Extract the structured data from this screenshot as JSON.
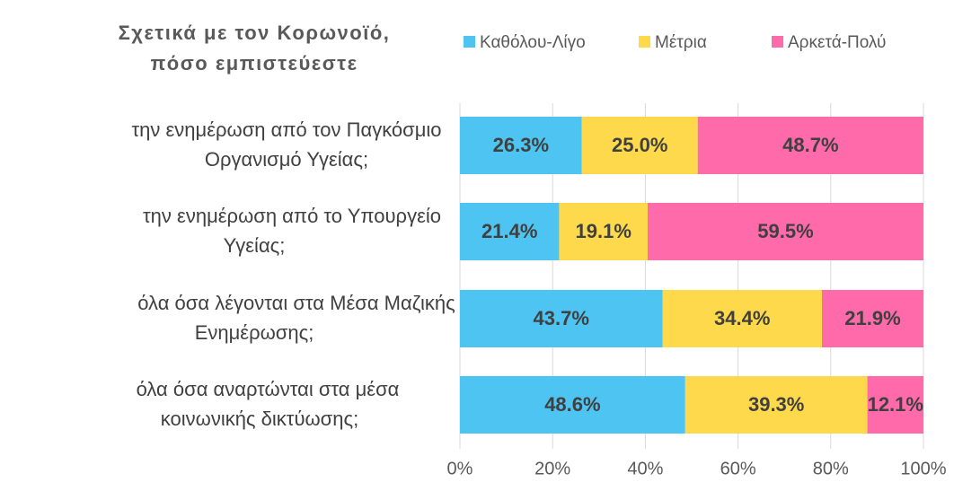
{
  "chart_data": {
    "type": "stacked_bar_horizontal",
    "title": [
      "Σχετικά με τον Κορωνοϊό,",
      "πόσο εμπιστεύεστε"
    ],
    "categories": [
      [
        "την ενημέρωση από τον Παγκόσμιο",
        "Οργανισμό Υγείας;"
      ],
      [
        "την ενημέρωση από το Υπουργείο",
        "Υγείας;"
      ],
      [
        "όλα όσα  λέγονται στα Μέσα Μαζικής",
        "Ενημέρωσης;"
      ],
      [
        "όλα όσα αναρτώνται στα μέσα",
        "κοινωνικής δικτύωσης;"
      ]
    ],
    "series": [
      {
        "name": "Καθόλου-Λίγο",
        "color": "#4dc4f2",
        "values": [
          26.3,
          21.4,
          43.7,
          48.6
        ],
        "value_labels": [
          "26.3%",
          "21.4%",
          "43.7%",
          "48.6%"
        ]
      },
      {
        "name": "Μέτρια",
        "color": "#fdd94b",
        "values": [
          25.0,
          19.1,
          34.4,
          39.3
        ],
        "value_labels": [
          "25.0%",
          "19.1%",
          "34.4%",
          "39.3%"
        ]
      },
      {
        "name": "Αρκετά-Πολύ",
        "color": "#fe6aaa",
        "values": [
          48.7,
          59.5,
          21.9,
          12.1
        ],
        "value_labels": [
          "48.7%",
          "59.5%",
          "21.9%",
          "12.1%"
        ]
      }
    ],
    "xlim": [
      0,
      100
    ],
    "xticks": [
      {
        "value": 0,
        "label": "0%"
      },
      {
        "value": 20,
        "label": "20%"
      },
      {
        "value": 40,
        "label": "40%"
      },
      {
        "value": 60,
        "label": "60%"
      },
      {
        "value": 80,
        "label": "80%"
      },
      {
        "value": 100,
        "label": "100%"
      }
    ],
    "grid": true
  }
}
